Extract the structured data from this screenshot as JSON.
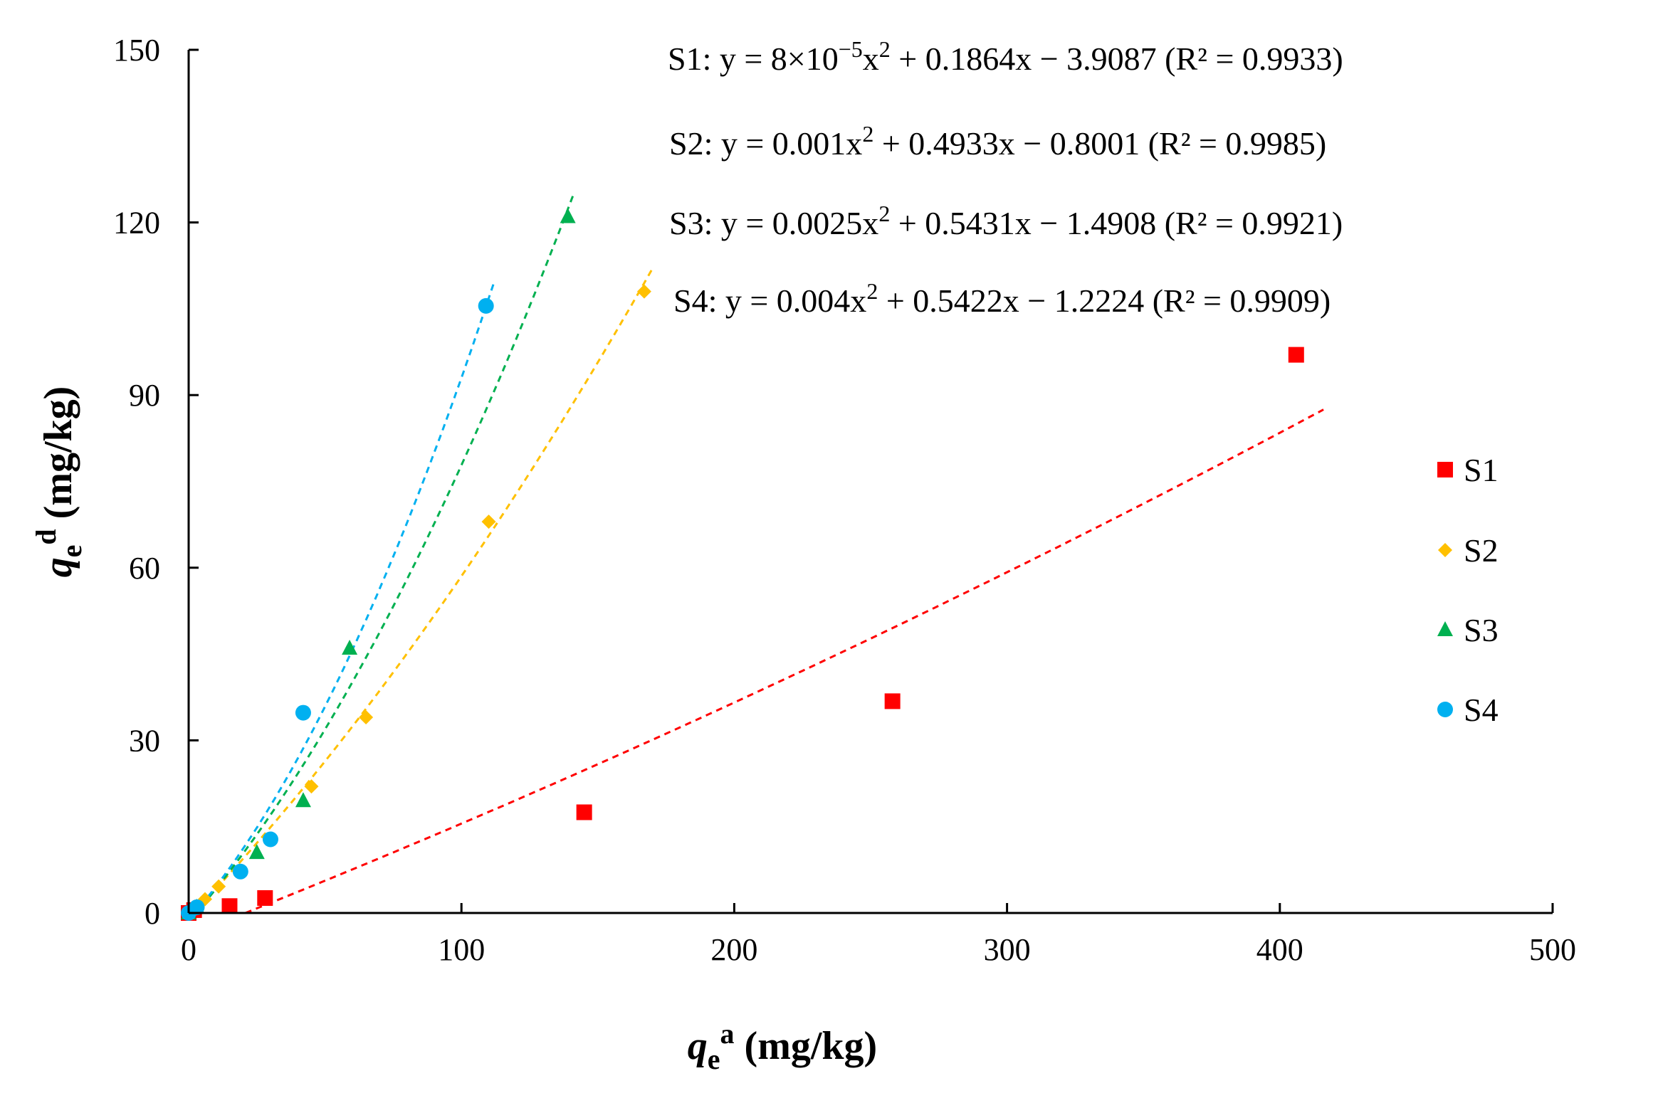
{
  "chart_data": {
    "type": "scatter",
    "title": "",
    "xlabel": {
      "symbol": "q",
      "sub": "e",
      "sup": "a",
      "unit": " (mg/kg)"
    },
    "ylabel": {
      "symbol": "q",
      "sub": "e",
      "sup": "d",
      "unit": " (mg/kg)"
    },
    "xlim": [
      0,
      500
    ],
    "ylim": [
      0,
      150
    ],
    "x_ticks": [
      0,
      100,
      200,
      300,
      400,
      500
    ],
    "y_ticks": [
      0,
      30,
      60,
      90,
      120,
      150
    ],
    "grid": false,
    "legend_position": "right",
    "series": [
      {
        "name": "S1",
        "color": "#ff0000",
        "marker": "square",
        "x": [
          0,
          2,
          15,
          28,
          145,
          258,
          406
        ],
        "y": [
          0,
          0.5,
          1.2,
          2.6,
          17.5,
          36.8,
          97
        ],
        "trend": {
          "a": 8e-05,
          "b": 0.1864,
          "c": -3.9087,
          "x_range": [
            0,
            416
          ]
        },
        "equation": {
          "prefix": "S1: y = 8×10",
          "exp": "−5",
          "mid": "x",
          "sq": "2",
          "rest": " + 0.1864x − 3.9087  (R² = 0.9933)"
        }
      },
      {
        "name": "S2",
        "color": "#ffc000",
        "marker": "diamond",
        "x": [
          0,
          3,
          6,
          11,
          45,
          65,
          110,
          167
        ],
        "y": [
          0,
          0.8,
          2.4,
          4.6,
          22,
          34,
          68,
          108
        ],
        "trend": {
          "a": 0.001,
          "b": 0.4933,
          "c": -0.8001,
          "x_range": [
            0,
            170
          ]
        },
        "equation": {
          "prefix": "S2: y = 0.001x",
          "sq": "2",
          "rest": " + 0.4933x − 0.8001  (R² = 0.9985)"
        }
      },
      {
        "name": "S3",
        "color": "#00b050",
        "marker": "triangle",
        "x": [
          0,
          3,
          25,
          42,
          59,
          139
        ],
        "y": [
          0,
          1,
          10.5,
          19.5,
          46,
          121
        ],
        "trend": {
          "a": 0.0025,
          "b": 0.5431,
          "c": -1.4908,
          "x_range": [
            0,
            141
          ]
        },
        "equation": {
          "prefix": "S3: y = 0.0025x",
          "sq": "2",
          "rest": " + 0.5431x − 1.4908  (R² = 0.9921)"
        }
      },
      {
        "name": "S4",
        "color": "#00b0f0",
        "marker": "circle",
        "x": [
          0,
          3,
          19,
          30,
          42,
          109
        ],
        "y": [
          0,
          1,
          7.2,
          12.8,
          34.8,
          105.5
        ],
        "trend": {
          "a": 0.004,
          "b": 0.5422,
          "c": -1.2224,
          "x_range": [
            0,
            112
          ]
        },
        "equation": {
          "prefix": "S4: y = 0.004x",
          "sq": "2",
          "rest": " + 0.5422x − 1.2224  (R² = 0.9909)"
        }
      }
    ]
  }
}
